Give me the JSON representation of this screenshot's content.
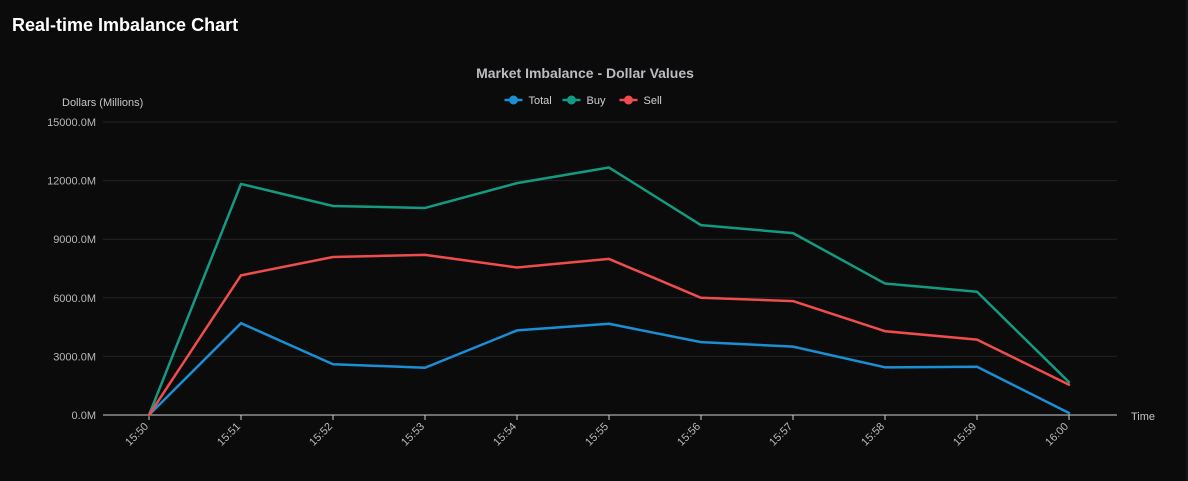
{
  "panel": {
    "title": "Real-time Imbalance Chart"
  },
  "chart_data": {
    "type": "line",
    "title": "Market Imbalance - Dollar Values",
    "xlabel": "Time",
    "ylabel": "Dollars (Millions)",
    "x": [
      "15:50",
      "15:51",
      "15:52",
      "15:53",
      "15:54",
      "15:55",
      "15:56",
      "15:57",
      "15:58",
      "15:59",
      "16:00"
    ],
    "ylim": [
      0,
      15000
    ],
    "yticks": [
      0,
      3000,
      6000,
      9000,
      12000,
      15000
    ],
    "ytick_labels": [
      "0.0M",
      "3000.0M",
      "6000.0M",
      "9000.0M",
      "12000.0M",
      "15000.0M"
    ],
    "grid": true,
    "legend_position": "top",
    "series": [
      {
        "name": "Total",
        "color": "#1a8fd4",
        "values": [
          0,
          4700,
          2600,
          2420,
          4330,
          4670,
          3730,
          3500,
          2440,
          2470,
          100
        ]
      },
      {
        "name": "Buy",
        "color": "#149a82",
        "values": [
          0,
          11830,
          10700,
          10600,
          11870,
          12670,
          9720,
          9310,
          6730,
          6310,
          1680
        ]
      },
      {
        "name": "Sell",
        "color": "#ee4d4b",
        "values": [
          0,
          7150,
          8090,
          8200,
          7550,
          7990,
          6000,
          5830,
          4290,
          3860,
          1550
        ]
      }
    ]
  }
}
